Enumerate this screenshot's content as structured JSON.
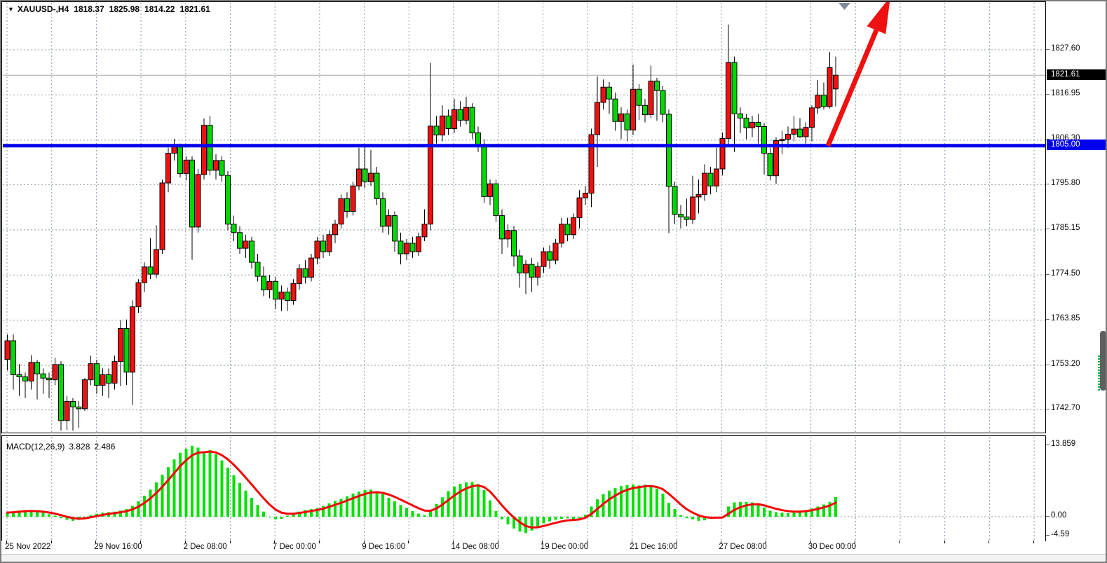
{
  "header": {
    "marker": "▼",
    "symbol_period": "XAUUSD-,H4",
    "open": "1818.37",
    "high": "1825.98",
    "low": "1814.22",
    "close": "1821.61"
  },
  "price_axis": {
    "labels": [
      "1827.60",
      "1816.95",
      "1806.30",
      "1795.80",
      "1785.15",
      "1774.50",
      "1763.85",
      "1753.20",
      "1742.70"
    ],
    "values": [
      1827.6,
      1816.95,
      1806.3,
      1795.8,
      1785.15,
      1774.5,
      1763.85,
      1753.2,
      1742.7
    ],
    "current_badge": {
      "text": "1821.61",
      "value": 1821.61,
      "bg": "#000000",
      "fg": "#ffffff"
    },
    "level_badge": {
      "text": "1805.00",
      "value": 1805.0,
      "bg": "#0000ee",
      "fg": "#ffffff"
    }
  },
  "time_axis": {
    "labels": [
      "25 Nov 2022",
      "29 Nov 16:00",
      "2 Dec 08:00",
      "7 Dec 00:00",
      "9 Dec 16:00",
      "14 Dec 08:00",
      "19 Dec 00:00",
      "21 Dec 16:00",
      "27 Dec 08:00",
      "30 Dec 00:00"
    ]
  },
  "macd_panel": {
    "label": "MACD(12,26,9)",
    "main_value": "3.828",
    "signal_value": "2.486",
    "axis_labels": [
      "13.859",
      "0.00",
      "-4.59"
    ],
    "axis_values": [
      13.859,
      0.0,
      -4.59
    ]
  },
  "colors": {
    "bull_body": "#ee1111",
    "bear_body": "#00d800",
    "wick": "#000000",
    "grid": "#8c9aab",
    "level_line": "#0000ee",
    "bid_line": "#a2a2a2",
    "histogram": "#00e002",
    "signal_line": "#f40606",
    "arrow": "#ee1111",
    "top_marker": "#7e8a99",
    "scrollbar": "#5f5f5f",
    "scroll_dashes": "#00b44a"
  },
  "chart_data": {
    "type": "candlestick",
    "symbol": "XAUUSD",
    "timeframe": "H4",
    "title": "XAUUSD-,H4 1818.37 1825.98 1814.22 1821.61",
    "legend_position": "top-left",
    "grid": true,
    "visible_range": {
      "price_min": 1736.5,
      "price_max": 1834.5,
      "time_start": "25 Nov 2022",
      "time_end": "30 Dec 2022"
    },
    "last_quote": {
      "open": 1818.37,
      "high": 1825.98,
      "low": 1814.22,
      "close": 1821.61
    },
    "horizontal_level": 1805.0,
    "bid_line_price": 1821.61,
    "annotations": [
      "red-up-trend-arrow at right end pointing to upper-right from 1805 level"
    ],
    "candles_ohlc": [
      [
        1754.6,
        1760.5,
        1752.0,
        1759.0
      ],
      [
        1759.0,
        1760.5,
        1747.5,
        1751.0
      ],
      [
        1751.0,
        1753.5,
        1746.0,
        1750.5
      ],
      [
        1750.5,
        1751.5,
        1745.5,
        1749.5
      ],
      [
        1749.5,
        1755.6,
        1747.5,
        1753.9
      ],
      [
        1753.9,
        1754.5,
        1745.2,
        1751.2
      ],
      [
        1751.2,
        1752.5,
        1746.5,
        1750.2
      ],
      [
        1750.2,
        1751.5,
        1745.5,
        1749.8
      ],
      [
        1749.8,
        1755.0,
        1748.5,
        1753.4
      ],
      [
        1753.4,
        1754.2,
        1737.8,
        1740.2
      ],
      [
        1740.2,
        1746.0,
        1738.0,
        1744.7
      ],
      [
        1744.7,
        1745.5,
        1737.8,
        1743.4
      ],
      [
        1743.4,
        1744.8,
        1738.5,
        1743.0
      ],
      [
        1743.0,
        1750.2,
        1742.5,
        1749.8
      ],
      [
        1749.8,
        1755.5,
        1748.5,
        1753.6
      ],
      [
        1753.6,
        1754.5,
        1746.5,
        1748.5
      ],
      [
        1748.5,
        1752.5,
        1746.0,
        1751.0
      ],
      [
        1751.0,
        1752.5,
        1745.5,
        1749.0
      ],
      [
        1749.0,
        1755.5,
        1747.5,
        1754.1
      ],
      [
        1754.1,
        1763.9,
        1748.3,
        1761.9
      ],
      [
        1761.9,
        1764.0,
        1748.6,
        1751.6
      ],
      [
        1751.6,
        1768.5,
        1743.9,
        1767.0
      ],
      [
        1767.0,
        1773.5,
        1765.6,
        1772.7
      ],
      [
        1772.7,
        1777.5,
        1770.5,
        1776.4
      ],
      [
        1776.4,
        1783.2,
        1773.5,
        1774.7
      ],
      [
        1774.7,
        1786.2,
        1773.8,
        1780.5
      ],
      [
        1780.5,
        1797.0,
        1779.5,
        1796.2
      ],
      [
        1796.2,
        1804.5,
        1794.0,
        1803.2
      ],
      [
        1803.2,
        1806.6,
        1801.5,
        1804.8
      ],
      [
        1804.8,
        1805.5,
        1797.5,
        1798.4
      ],
      [
        1798.4,
        1802.5,
        1796.8,
        1801.6
      ],
      [
        1801.6,
        1802.5,
        1778.1,
        1785.8
      ],
      [
        1785.8,
        1799.5,
        1784.5,
        1798.2
      ],
      [
        1798.2,
        1811.4,
        1797.0,
        1809.8
      ],
      [
        1809.8,
        1812.0,
        1798.0,
        1799.2
      ],
      [
        1799.2,
        1803.0,
        1797.0,
        1801.5
      ],
      [
        1801.5,
        1802.5,
        1796.5,
        1798.0
      ],
      [
        1798.0,
        1799.0,
        1785.0,
        1786.5
      ],
      [
        1786.5,
        1788.5,
        1782.5,
        1784.5
      ],
      [
        1784.5,
        1786.0,
        1779.5,
        1780.8
      ],
      [
        1780.8,
        1784.0,
        1778.5,
        1782.5
      ],
      [
        1782.5,
        1783.5,
        1776.0,
        1777.5
      ],
      [
        1777.5,
        1779.5,
        1773.0,
        1774.2
      ],
      [
        1774.2,
        1776.5,
        1769.5,
        1771.0
      ],
      [
        1771.0,
        1774.5,
        1769.0,
        1773.0
      ],
      [
        1773.0,
        1774.0,
        1766.5,
        1768.8
      ],
      [
        1768.8,
        1772.0,
        1766.0,
        1770.5
      ],
      [
        1770.5,
        1771.5,
        1766.0,
        1768.5
      ],
      [
        1768.5,
        1773.5,
        1767.5,
        1772.5
      ],
      [
        1772.5,
        1777.0,
        1771.0,
        1776.0
      ],
      [
        1776.0,
        1778.0,
        1772.5,
        1774.0
      ],
      [
        1774.0,
        1779.5,
        1773.0,
        1778.5
      ],
      [
        1778.5,
        1783.5,
        1777.0,
        1782.5
      ],
      [
        1782.5,
        1784.0,
        1778.5,
        1780.0
      ],
      [
        1780.0,
        1785.0,
        1779.0,
        1784.0
      ],
      [
        1784.0,
        1787.5,
        1782.0,
        1786.5
      ],
      [
        1786.5,
        1793.5,
        1785.5,
        1792.5
      ],
      [
        1792.5,
        1794.0,
        1788.0,
        1789.5
      ],
      [
        1789.5,
        1796.5,
        1788.5,
        1795.5
      ],
      [
        1795.5,
        1804.5,
        1794.5,
        1799.5
      ],
      [
        1799.5,
        1805.0,
        1795.0,
        1796.5
      ],
      [
        1796.5,
        1804.0,
        1795.5,
        1798.5
      ],
      [
        1798.5,
        1800.0,
        1791.0,
        1792.5
      ],
      [
        1792.5,
        1794.0,
        1784.5,
        1786.0
      ],
      [
        1786.0,
        1790.0,
        1784.0,
        1788.5
      ],
      [
        1788.5,
        1789.5,
        1780.0,
        1782.5
      ],
      [
        1782.5,
        1784.5,
        1777.0,
        1779.5
      ],
      [
        1779.5,
        1783.0,
        1778.0,
        1782.0
      ],
      [
        1782.0,
        1783.5,
        1778.5,
        1780.0
      ],
      [
        1780.0,
        1784.5,
        1779.0,
        1783.5
      ],
      [
        1783.5,
        1790.0,
        1782.5,
        1786.5
      ],
      [
        1786.5,
        1824.5,
        1785.0,
        1809.6
      ],
      [
        1809.6,
        1812.0,
        1805.5,
        1807.5
      ],
      [
        1807.5,
        1814.5,
        1806.0,
        1812.0
      ],
      [
        1812.0,
        1813.5,
        1807.5,
        1809.0
      ],
      [
        1809.0,
        1816.0,
        1808.0,
        1813.5
      ],
      [
        1813.5,
        1815.5,
        1809.5,
        1811.0
      ],
      [
        1811.0,
        1816.5,
        1810.0,
        1814.0
      ],
      [
        1814.0,
        1815.0,
        1806.5,
        1808.0
      ],
      [
        1808.0,
        1809.5,
        1803.5,
        1805.0
      ],
      [
        1805.0,
        1806.5,
        1791.5,
        1793.0
      ],
      [
        1793.0,
        1797.0,
        1791.0,
        1796.0
      ],
      [
        1796.0,
        1797.0,
        1787.0,
        1788.5
      ],
      [
        1788.5,
        1790.0,
        1779.5,
        1783.0
      ],
      [
        1783.0,
        1786.5,
        1781.0,
        1785.0
      ],
      [
        1785.0,
        1786.0,
        1776.5,
        1779.0
      ],
      [
        1779.0,
        1780.5,
        1771.5,
        1775.0
      ],
      [
        1775.0,
        1778.0,
        1770.0,
        1777.0
      ],
      [
        1777.0,
        1778.5,
        1770.5,
        1774.0
      ],
      [
        1774.0,
        1777.5,
        1772.0,
        1776.5
      ],
      [
        1776.5,
        1781.0,
        1775.0,
        1780.0
      ],
      [
        1780.0,
        1781.5,
        1776.0,
        1778.0
      ],
      [
        1778.0,
        1783.0,
        1777.0,
        1782.0
      ],
      [
        1782.0,
        1788.0,
        1781.0,
        1786.5
      ],
      [
        1786.5,
        1788.0,
        1782.5,
        1784.0
      ],
      [
        1784.0,
        1789.0,
        1783.0,
        1788.0
      ],
      [
        1788.0,
        1794.5,
        1785.5,
        1792.7
      ],
      [
        1792.7,
        1795.5,
        1791.0,
        1793.8
      ],
      [
        1793.8,
        1809.0,
        1790.5,
        1807.6
      ],
      [
        1807.6,
        1821.3,
        1800.0,
        1815.2
      ],
      [
        1815.2,
        1820.6,
        1813.5,
        1818.8
      ],
      [
        1818.8,
        1820.0,
        1812.5,
        1816.0
      ],
      [
        1816.0,
        1817.5,
        1808.5,
        1810.7
      ],
      [
        1810.7,
        1814.0,
        1806.5,
        1812.5
      ],
      [
        1812.5,
        1813.5,
        1806.0,
        1808.7
      ],
      [
        1808.7,
        1824.1,
        1807.5,
        1818.3
      ],
      [
        1818.3,
        1819.5,
        1811.0,
        1814.5
      ],
      [
        1814.5,
        1816.0,
        1810.5,
        1812.3
      ],
      [
        1812.3,
        1823.9,
        1811.5,
        1820.2
      ],
      [
        1820.2,
        1821.0,
        1810.9,
        1818.0
      ],
      [
        1818.0,
        1819.0,
        1810.5,
        1812.4
      ],
      [
        1812.4,
        1813.5,
        1784.4,
        1795.4
      ],
      [
        1795.4,
        1796.5,
        1786.5,
        1788.8
      ],
      [
        1788.8,
        1791.0,
        1785.5,
        1788.2
      ],
      [
        1788.2,
        1792.5,
        1786.0,
        1787.6
      ],
      [
        1787.6,
        1797.9,
        1786.5,
        1792.9
      ],
      [
        1792.9,
        1797.0,
        1789.0,
        1793.5
      ],
      [
        1793.5,
        1800.6,
        1792.0,
        1798.5
      ],
      [
        1798.5,
        1800.0,
        1793.5,
        1795.5
      ],
      [
        1795.5,
        1804.5,
        1794.0,
        1799.5
      ],
      [
        1799.5,
        1808.1,
        1798.0,
        1806.7
      ],
      [
        1806.7,
        1833.5,
        1805.0,
        1824.6
      ],
      [
        1824.6,
        1826.0,
        1803.5,
        1812.5
      ],
      [
        1812.5,
        1814.0,
        1808.0,
        1811.5
      ],
      [
        1811.5,
        1812.5,
        1806.5,
        1809.2
      ],
      [
        1809.2,
        1812.0,
        1807.0,
        1810.5
      ],
      [
        1810.5,
        1812.5,
        1805.5,
        1809.5
      ],
      [
        1809.5,
        1810.3,
        1798.2,
        1803.2
      ],
      [
        1803.2,
        1804.5,
        1796.8,
        1797.9
      ],
      [
        1797.9,
        1807.0,
        1796.0,
        1806.2
      ],
      [
        1806.2,
        1808.5,
        1803.0,
        1806.5
      ],
      [
        1806.5,
        1809.5,
        1804.5,
        1807.7
      ],
      [
        1807.7,
        1812.0,
        1806.0,
        1808.9
      ],
      [
        1808.9,
        1811.5,
        1806.8,
        1807.1
      ],
      [
        1807.1,
        1810.5,
        1805.5,
        1809.3
      ],
      [
        1809.3,
        1814.5,
        1806.0,
        1813.9
      ],
      [
        1813.9,
        1820.5,
        1812.5,
        1816.9
      ],
      [
        1816.9,
        1819.9,
        1813.5,
        1814.2
      ],
      [
        1814.2,
        1827.1,
        1813.8,
        1823.4
      ],
      [
        1818.37,
        1825.98,
        1814.22,
        1821.61
      ]
    ],
    "macd": {
      "params": [
        12,
        26,
        9
      ],
      "last_main": 3.828,
      "last_signal": 2.486,
      "range": [
        -4.59,
        13.859
      ],
      "histogram": [
        0.8,
        1.0,
        1.2,
        1.3,
        1.2,
        1.0,
        0.8,
        0.5,
        0.2,
        -0.3,
        -0.6,
        -0.8,
        -0.6,
        -0.2,
        0.3,
        0.6,
        0.8,
        0.9,
        1.0,
        1.2,
        1.5,
        2.1,
        3.0,
        4.1,
        5.3,
        6.7,
        8.2,
        9.7,
        11.2,
        12.5,
        13.3,
        13.86,
        13.5,
        12.8,
        13.0,
        12.2,
        11.0,
        9.6,
        8.1,
        6.6,
        5.1,
        3.7,
        2.3,
        1.0,
        0.0,
        -0.5,
        -0.4,
        0.2,
        0.6,
        1.0,
        1.3,
        1.5,
        1.7,
        2.1,
        2.6,
        3.1,
        3.5,
        4.0,
        4.5,
        4.9,
        5.2,
        5.3,
        4.9,
        4.4,
        3.7,
        3.0,
        2.3,
        1.7,
        1.1,
        0.6,
        0.3,
        1.1,
        2.5,
        3.8,
        5.0,
        5.9,
        6.4,
        6.7,
        6.8,
        6.4,
        5.2,
        3.2,
        1.1,
        -0.5,
        -1.5,
        -2.3,
        -2.9,
        -3.2,
        -2.7,
        -2.0,
        -1.3,
        -0.9,
        -0.6,
        -0.4,
        -0.3,
        -0.5,
        -0.3,
        0.4,
        2.0,
        3.4,
        4.4,
        5.1,
        5.6,
        6.0,
        6.2,
        6.3,
        6.1,
        6.25,
        6.1,
        5.5,
        4.5,
        2.7,
        1.5,
        0.3,
        -0.3,
        -0.5,
        -0.8,
        -0.7,
        -0.4,
        -0.2,
        -0.1,
        2.0,
        2.8,
        2.9,
        2.9,
        2.8,
        2.5,
        1.8,
        1.2,
        0.9,
        0.8,
        0.7,
        0.8,
        1.0,
        1.3,
        1.6,
        2.0,
        2.4,
        2.9,
        3.828
      ]
    }
  }
}
